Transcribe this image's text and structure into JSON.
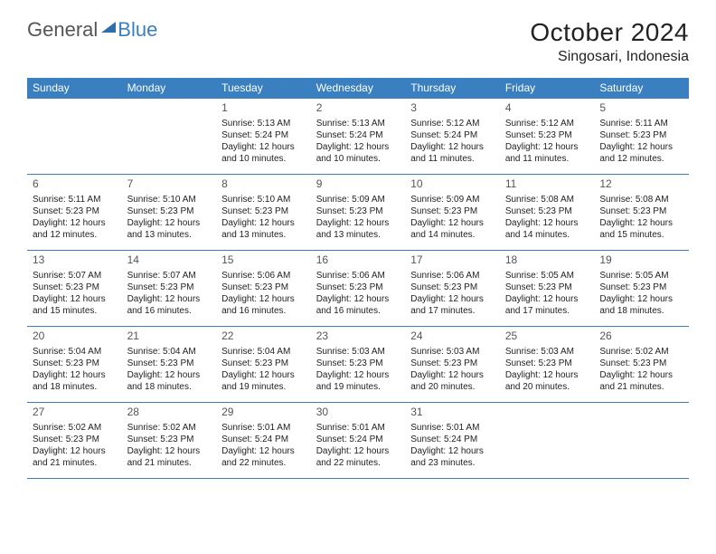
{
  "logo": {
    "part1": "General",
    "part2": "Blue"
  },
  "title": "October 2024",
  "location": "Singosari, Indonesia",
  "colors": {
    "header_bg": "#3a7fbf",
    "header_text": "#ffffff",
    "cell_border": "#3a7fbf",
    "text": "#222222",
    "daynum": "#555555",
    "background": "#ffffff"
  },
  "fonts": {
    "title_pt": 28,
    "location_pt": 16,
    "dayheader_pt": 12,
    "daynum_pt": 12,
    "body_pt": 10
  },
  "day_headers": [
    "Sunday",
    "Monday",
    "Tuesday",
    "Wednesday",
    "Thursday",
    "Friday",
    "Saturday"
  ],
  "weeks": [
    [
      null,
      null,
      {
        "n": "1",
        "sr": "Sunrise: 5:13 AM",
        "ss": "Sunset: 5:24 PM",
        "d1": "Daylight: 12 hours",
        "d2": "and 10 minutes."
      },
      {
        "n": "2",
        "sr": "Sunrise: 5:13 AM",
        "ss": "Sunset: 5:24 PM",
        "d1": "Daylight: 12 hours",
        "d2": "and 10 minutes."
      },
      {
        "n": "3",
        "sr": "Sunrise: 5:12 AM",
        "ss": "Sunset: 5:24 PM",
        "d1": "Daylight: 12 hours",
        "d2": "and 11 minutes."
      },
      {
        "n": "4",
        "sr": "Sunrise: 5:12 AM",
        "ss": "Sunset: 5:23 PM",
        "d1": "Daylight: 12 hours",
        "d2": "and 11 minutes."
      },
      {
        "n": "5",
        "sr": "Sunrise: 5:11 AM",
        "ss": "Sunset: 5:23 PM",
        "d1": "Daylight: 12 hours",
        "d2": "and 12 minutes."
      }
    ],
    [
      {
        "n": "6",
        "sr": "Sunrise: 5:11 AM",
        "ss": "Sunset: 5:23 PM",
        "d1": "Daylight: 12 hours",
        "d2": "and 12 minutes."
      },
      {
        "n": "7",
        "sr": "Sunrise: 5:10 AM",
        "ss": "Sunset: 5:23 PM",
        "d1": "Daylight: 12 hours",
        "d2": "and 13 minutes."
      },
      {
        "n": "8",
        "sr": "Sunrise: 5:10 AM",
        "ss": "Sunset: 5:23 PM",
        "d1": "Daylight: 12 hours",
        "d2": "and 13 minutes."
      },
      {
        "n": "9",
        "sr": "Sunrise: 5:09 AM",
        "ss": "Sunset: 5:23 PM",
        "d1": "Daylight: 12 hours",
        "d2": "and 13 minutes."
      },
      {
        "n": "10",
        "sr": "Sunrise: 5:09 AM",
        "ss": "Sunset: 5:23 PM",
        "d1": "Daylight: 12 hours",
        "d2": "and 14 minutes."
      },
      {
        "n": "11",
        "sr": "Sunrise: 5:08 AM",
        "ss": "Sunset: 5:23 PM",
        "d1": "Daylight: 12 hours",
        "d2": "and 14 minutes."
      },
      {
        "n": "12",
        "sr": "Sunrise: 5:08 AM",
        "ss": "Sunset: 5:23 PM",
        "d1": "Daylight: 12 hours",
        "d2": "and 15 minutes."
      }
    ],
    [
      {
        "n": "13",
        "sr": "Sunrise: 5:07 AM",
        "ss": "Sunset: 5:23 PM",
        "d1": "Daylight: 12 hours",
        "d2": "and 15 minutes."
      },
      {
        "n": "14",
        "sr": "Sunrise: 5:07 AM",
        "ss": "Sunset: 5:23 PM",
        "d1": "Daylight: 12 hours",
        "d2": "and 16 minutes."
      },
      {
        "n": "15",
        "sr": "Sunrise: 5:06 AM",
        "ss": "Sunset: 5:23 PM",
        "d1": "Daylight: 12 hours",
        "d2": "and 16 minutes."
      },
      {
        "n": "16",
        "sr": "Sunrise: 5:06 AM",
        "ss": "Sunset: 5:23 PM",
        "d1": "Daylight: 12 hours",
        "d2": "and 16 minutes."
      },
      {
        "n": "17",
        "sr": "Sunrise: 5:06 AM",
        "ss": "Sunset: 5:23 PM",
        "d1": "Daylight: 12 hours",
        "d2": "and 17 minutes."
      },
      {
        "n": "18",
        "sr": "Sunrise: 5:05 AM",
        "ss": "Sunset: 5:23 PM",
        "d1": "Daylight: 12 hours",
        "d2": "and 17 minutes."
      },
      {
        "n": "19",
        "sr": "Sunrise: 5:05 AM",
        "ss": "Sunset: 5:23 PM",
        "d1": "Daylight: 12 hours",
        "d2": "and 18 minutes."
      }
    ],
    [
      {
        "n": "20",
        "sr": "Sunrise: 5:04 AM",
        "ss": "Sunset: 5:23 PM",
        "d1": "Daylight: 12 hours",
        "d2": "and 18 minutes."
      },
      {
        "n": "21",
        "sr": "Sunrise: 5:04 AM",
        "ss": "Sunset: 5:23 PM",
        "d1": "Daylight: 12 hours",
        "d2": "and 18 minutes."
      },
      {
        "n": "22",
        "sr": "Sunrise: 5:04 AM",
        "ss": "Sunset: 5:23 PM",
        "d1": "Daylight: 12 hours",
        "d2": "and 19 minutes."
      },
      {
        "n": "23",
        "sr": "Sunrise: 5:03 AM",
        "ss": "Sunset: 5:23 PM",
        "d1": "Daylight: 12 hours",
        "d2": "and 19 minutes."
      },
      {
        "n": "24",
        "sr": "Sunrise: 5:03 AM",
        "ss": "Sunset: 5:23 PM",
        "d1": "Daylight: 12 hours",
        "d2": "and 20 minutes."
      },
      {
        "n": "25",
        "sr": "Sunrise: 5:03 AM",
        "ss": "Sunset: 5:23 PM",
        "d1": "Daylight: 12 hours",
        "d2": "and 20 minutes."
      },
      {
        "n": "26",
        "sr": "Sunrise: 5:02 AM",
        "ss": "Sunset: 5:23 PM",
        "d1": "Daylight: 12 hours",
        "d2": "and 21 minutes."
      }
    ],
    [
      {
        "n": "27",
        "sr": "Sunrise: 5:02 AM",
        "ss": "Sunset: 5:23 PM",
        "d1": "Daylight: 12 hours",
        "d2": "and 21 minutes."
      },
      {
        "n": "28",
        "sr": "Sunrise: 5:02 AM",
        "ss": "Sunset: 5:23 PM",
        "d1": "Daylight: 12 hours",
        "d2": "and 21 minutes."
      },
      {
        "n": "29",
        "sr": "Sunrise: 5:01 AM",
        "ss": "Sunset: 5:24 PM",
        "d1": "Daylight: 12 hours",
        "d2": "and 22 minutes."
      },
      {
        "n": "30",
        "sr": "Sunrise: 5:01 AM",
        "ss": "Sunset: 5:24 PM",
        "d1": "Daylight: 12 hours",
        "d2": "and 22 minutes."
      },
      {
        "n": "31",
        "sr": "Sunrise: 5:01 AM",
        "ss": "Sunset: 5:24 PM",
        "d1": "Daylight: 12 hours",
        "d2": "and 23 minutes."
      },
      null,
      null
    ]
  ]
}
